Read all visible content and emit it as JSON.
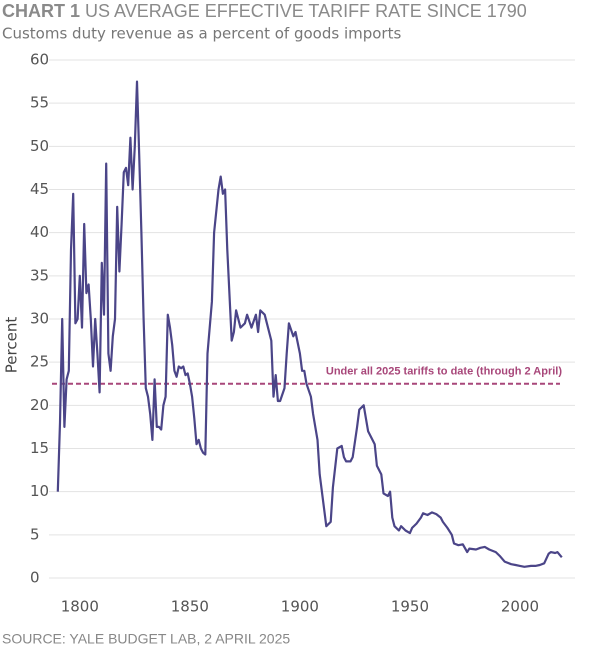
{
  "chart_data": {
    "type": "line",
    "title_label": "CHART 1",
    "title": "US AVERAGE EFFECTIVE TARIFF RATE SINCE 1790",
    "subtitle": "Customs duty revenue as a percent of goods imports",
    "ylabel": "Percent",
    "source": "SOURCE: YALE BUDGET LAB, 2 APRIL 2025",
    "color": "#4b4588",
    "x": [
      1790,
      1791,
      1792,
      1793,
      1794,
      1795,
      1796,
      1797,
      1798,
      1799,
      1800,
      1801,
      1802,
      1803,
      1804,
      1805,
      1806,
      1807,
      1808,
      1809,
      1810,
      1811,
      1812,
      1813,
      1814,
      1815,
      1816,
      1817,
      1818,
      1819,
      1820,
      1821,
      1822,
      1823,
      1824,
      1825,
      1826,
      1827,
      1828,
      1829,
      1830,
      1831,
      1832,
      1833,
      1834,
      1835,
      1836,
      1837,
      1838,
      1839,
      1840,
      1841,
      1842,
      1843,
      1844,
      1845,
      1846,
      1847,
      1848,
      1849,
      1850,
      1851,
      1852,
      1853,
      1854,
      1855,
      1856,
      1857,
      1858,
      1860,
      1861,
      1863,
      1864,
      1865,
      1866,
      1867,
      1869,
      1870,
      1871,
      1873,
      1875,
      1876,
      1878,
      1880,
      1881,
      1882,
      1884,
      1885,
      1887,
      1888,
      1889,
      1890,
      1891,
      1893,
      1894,
      1895,
      1897,
      1898,
      1900,
      1901,
      1902,
      1903,
      1905,
      1906,
      1908,
      1909,
      1911,
      1912,
      1914,
      1915,
      1917,
      1919,
      1920,
      1921,
      1923,
      1924,
      1926,
      1927,
      1929,
      1930,
      1931,
      1933,
      1934,
      1935,
      1937,
      1938,
      1940,
      1941,
      1942,
      1943,
      1945,
      1946,
      1948,
      1950,
      1951,
      1953,
      1955,
      1956,
      1958,
      1960,
      1962,
      1964,
      1965,
      1967,
      1969,
      1970,
      1972,
      1974,
      1976,
      1977,
      1980,
      1982,
      1984,
      1986,
      1989,
      1991,
      1993,
      1996,
      1998,
      2000,
      2002,
      2005,
      2007,
      2009,
      2011,
      2013,
      2014,
      2016,
      2017,
      2019
    ],
    "values": [
      10,
      18,
      30,
      17.5,
      23,
      24,
      38,
      44.5,
      29.5,
      30,
      35,
      29,
      41,
      33,
      34,
      30,
      24.5,
      30,
      26,
      21.5,
      36.5,
      30.5,
      48,
      26,
      24,
      28,
      30,
      43,
      35.5,
      41,
      47,
      47.5,
      45.5,
      51,
      45,
      50,
      57.5,
      49,
      40,
      30,
      22,
      21,
      19,
      16,
      23,
      17.5,
      17.5,
      17.2,
      20,
      21,
      30.5,
      29,
      27,
      24,
      23.3,
      24.5,
      24.3,
      24.5,
      23.5,
      23.7,
      22.5,
      21,
      18.5,
      15.5,
      16,
      15,
      14.5,
      14.3,
      26,
      32,
      40,
      45,
      46.5,
      44.5,
      45,
      38,
      27.5,
      28.5,
      31,
      29,
      29.5,
      30.5,
      29,
      30.5,
      28.5,
      31,
      30.5,
      29.5,
      27.5,
      21,
      23.5,
      20.5,
      20.5,
      22,
      26,
      29.5,
      28,
      28.5,
      26,
      24,
      24,
      22.5,
      21,
      19,
      16,
      12,
      8,
      6,
      6.5,
      10.5,
      15,
      15.3,
      14,
      13.5,
      13.5,
      14,
      17.5,
      19.5,
      20,
      18.5,
      17,
      16,
      15.5,
      13,
      12,
      9.8,
      9.5,
      10,
      7,
      6,
      5.5,
      6,
      5.5,
      5.2,
      5.8,
      6.3,
      7,
      7.5,
      7.3,
      7.6,
      7.4,
      7,
      6.5,
      5.8,
      5,
      4,
      3.8,
      3.9,
      3,
      3.4,
      3.3,
      3.5,
      3.6,
      3.3,
      3,
      2.5,
      1.9,
      1.6,
      1.5,
      1.4,
      1.3,
      1.4,
      1.4,
      1.5,
      1.7,
      2.8,
      3,
      2.9,
      3,
      2.4
    ],
    "xlim": [
      1786,
      2025
    ],
    "xticks": [
      1800,
      1850,
      1900,
      1950,
      2000
    ],
    "ylim": [
      0,
      60
    ],
    "yticks": [
      0,
      5,
      10,
      15,
      20,
      25,
      30,
      35,
      40,
      45,
      50,
      55,
      60
    ],
    "grid": true,
    "reference_line": {
      "value": 22.5,
      "label": "Under all 2025 tariffs to date (through 2 April)",
      "color": "#a8477a"
    }
  }
}
